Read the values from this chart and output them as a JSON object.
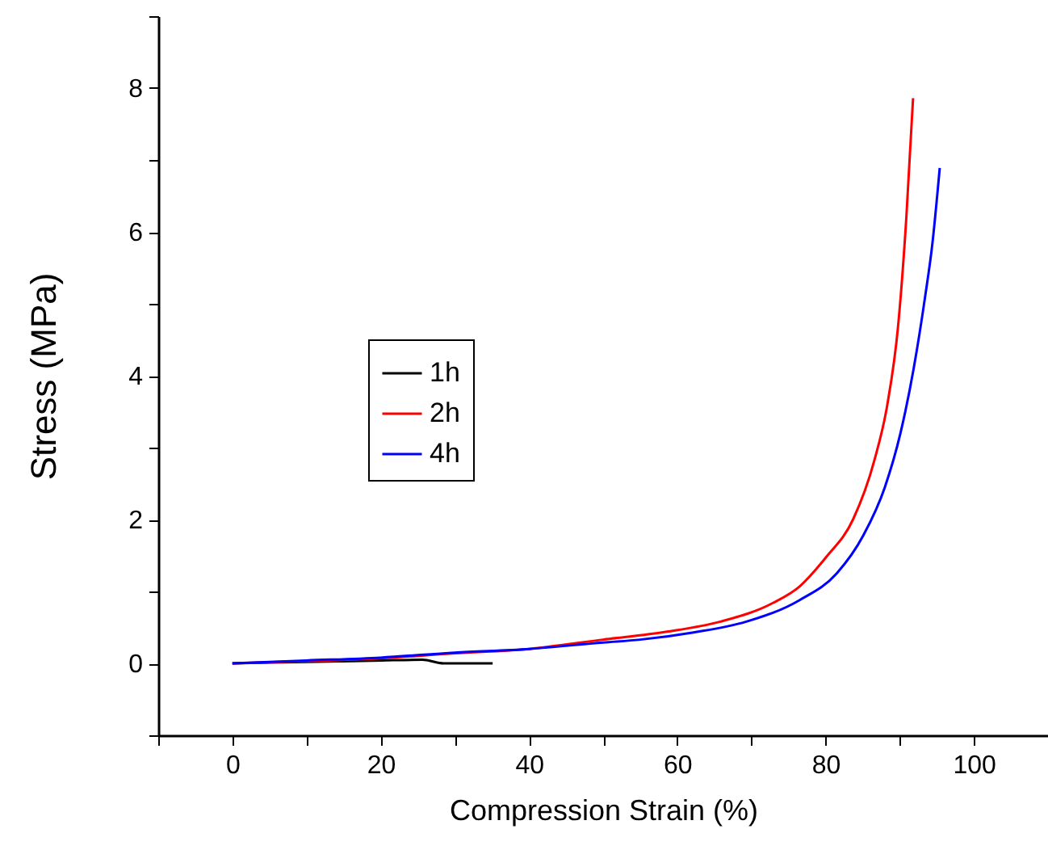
{
  "chart_data": {
    "type": "line",
    "xlabel": "Compression Strain (%)",
    "ylabel": "Stress (MPa)",
    "xlim": [
      -10,
      110
    ],
    "ylim": [
      -1,
      9
    ],
    "xticks": [
      {
        "value": -10,
        "label": null
      },
      0,
      {
        "value": 10,
        "label": null
      },
      20,
      {
        "value": 30,
        "label": null
      },
      40,
      {
        "value": 50,
        "label": null
      },
      60,
      {
        "value": 70,
        "label": null
      },
      80,
      {
        "value": 90,
        "label": null
      },
      100,
      {
        "value": 110,
        "label": null
      }
    ],
    "yticks": [
      {
        "value": -1,
        "label": null
      },
      0,
      {
        "value": 1,
        "label": null
      },
      2,
      {
        "value": 3,
        "label": null
      },
      4,
      {
        "value": 5,
        "label": null
      },
      6,
      {
        "value": 7,
        "label": null
      },
      8,
      {
        "value": 9,
        "label": null
      }
    ],
    "legend": "left",
    "grid": false,
    "line_style": "solid",
    "marker": "none",
    "series": [
      {
        "name": "1h",
        "color": "#000000",
        "x": [
          0,
          10,
          20,
          25.6,
          28.5,
          35.1
        ],
        "values": [
          0,
          0.02,
          0.04,
          0.05,
          0,
          0
        ]
      },
      {
        "name": "2h",
        "color": "#ff0000",
        "x": [
          0,
          10,
          20,
          30,
          40,
          50,
          58.6,
          65.8,
          72.9,
          76.5,
          80.1,
          83.7,
          86.6,
          88.3,
          89.8,
          90.9,
          91.8
        ],
        "values": [
          0,
          0.03,
          0.07,
          0.14,
          0.2,
          0.33,
          0.44,
          0.58,
          0.84,
          1.07,
          1.48,
          2.0,
          2.83,
          3.58,
          4.71,
          6.21,
          7.86
        ]
      },
      {
        "name": "4h",
        "color": "#0000ff",
        "x": [
          0,
          10,
          20,
          30,
          40,
          50,
          55.0,
          62.2,
          69.3,
          76.5,
          81.5,
          85.1,
          88.0,
          90.1,
          91.9,
          93.4,
          94.4,
          95.4
        ],
        "values": [
          0,
          0.04,
          0.08,
          0.15,
          0.2,
          0.29,
          0.33,
          0.43,
          0.58,
          0.88,
          1.25,
          1.78,
          2.45,
          3.2,
          4.11,
          5.08,
          5.83,
          6.89
        ]
      }
    ]
  }
}
